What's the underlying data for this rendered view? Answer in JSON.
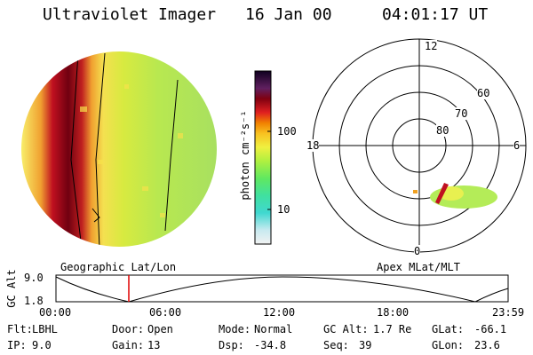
{
  "header": {
    "instrument": "Ultraviolet Imager",
    "date": "16 Jan 00",
    "time": "04:01:17 UT"
  },
  "colorbar": {
    "unit_label": "photon cm⁻²s⁻¹",
    "ticks": [
      "100",
      "10"
    ]
  },
  "polar_plot": {
    "mlt_labels": [
      "12",
      "18",
      "6",
      "0"
    ],
    "lat_labels": [
      "60",
      "70",
      "80"
    ]
  },
  "panel_labels": {
    "left": "Geographic Lat/Lon",
    "right": "Apex MLat/MLT"
  },
  "altitude_plot": {
    "axis_label": "GC Alt",
    "y_ticks": [
      "9.0",
      "1.8"
    ],
    "x_ticks": [
      "00:00",
      "06:00",
      "12:00",
      "18:00",
      "23:59"
    ]
  },
  "info": {
    "row1": [
      {
        "label": "Flt:",
        "value": "LBHL"
      },
      {
        "label": "Door:",
        "value": "Open"
      },
      {
        "label": "Mode:",
        "value": "Normal"
      },
      {
        "label": "GC Alt:",
        "value": "1.7 Re"
      },
      {
        "label": "GLat:",
        "value": "-66.1"
      }
    ],
    "row2": [
      {
        "label": "IP:",
        "value": "9.0"
      },
      {
        "label": "Gain:",
        "value": "13"
      },
      {
        "label": "Dsp:",
        "value": "-34.8"
      },
      {
        "label": "Seq:",
        "value": "39"
      },
      {
        "label": "GLon:",
        "value": "23.6"
      }
    ]
  }
}
